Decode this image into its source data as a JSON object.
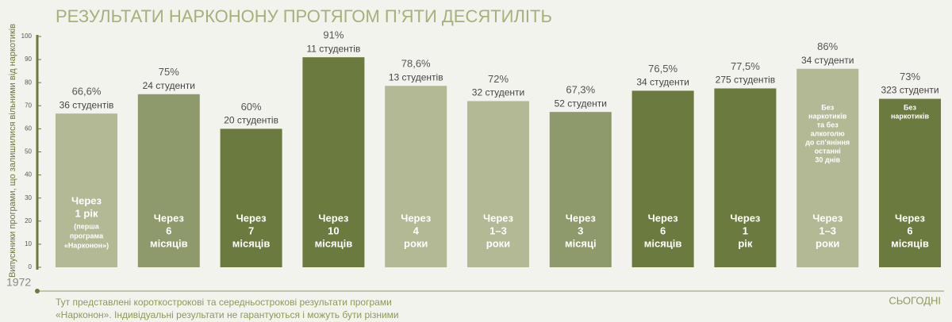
{
  "chart_data": {
    "type": "bar",
    "title": "РЕЗУЛЬТАТИ НАРКОНОНУ ПРОТЯГОМ П’ЯТИ ДЕСЯТИЛІТЬ",
    "y_label": "Випускники програми, що залишилися вільними від наркотиків",
    "categories": [
      null,
      null,
      null,
      null,
      null,
      null,
      null,
      null,
      null,
      null,
      null
    ],
    "values": [
      66.6,
      75,
      60,
      91,
      78.6,
      72,
      67.3,
      76.5,
      77.5,
      86,
      73
    ],
    "value_labels": [
      "66,6%",
      "75%",
      "60%",
      "91%",
      "78,6%",
      "72%",
      "67,3%",
      "76,5%",
      "77,5%",
      "86%",
      "73%"
    ],
    "sublabels": [
      "36 студентів",
      "24 студенти",
      "20 студентів",
      "11 студентів",
      "13 студентів",
      "32 студенти",
      "52 студенти",
      "34 студенти",
      "275 студентів",
      "34 студенти",
      "323 студенти"
    ],
    "bar_labels": [
      [
        "Через",
        "1 рік",
        "(перша",
        "програма",
        "«Нарконон»)"
      ],
      [
        "Через",
        "6",
        "місяців"
      ],
      [
        "Через",
        "7",
        "місяців"
      ],
      [
        "Через",
        "10",
        "місяців"
      ],
      [
        "Через",
        "4",
        "роки"
      ],
      [
        "Через",
        "1–3",
        "роки"
      ],
      [
        "Через",
        "3",
        "місяці"
      ],
      [
        "Через",
        "6",
        "місяців"
      ],
      [
        "Через",
        "1",
        "рік"
      ],
      [
        "Через",
        "1–3",
        "роки"
      ],
      [
        "Через",
        "6",
        "місяців"
      ]
    ],
    "notes": [
      null,
      null,
      null,
      null,
      null,
      null,
      null,
      null,
      null,
      [
        "Без",
        "наркотиків",
        "та без",
        "алкоголю",
        "до сп’яніння",
        "останні",
        "30 днів"
      ],
      [
        "Без",
        "наркотиків"
      ]
    ],
    "colors": [
      "#b3b994",
      "#8f9a6c",
      "#6b7a3e",
      "#6b7a3e",
      "#b3b994",
      "#b3b994",
      "#8f9a6c",
      "#6b7a3e",
      "#6b7a3e",
      "#b3b994",
      "#6b7a3e"
    ],
    "ylim": [
      0,
      100
    ],
    "yticks": [
      0,
      10,
      20,
      30,
      40,
      50,
      60,
      70,
      80,
      90,
      100
    ],
    "timeline_start": "1972",
    "timeline_end": "СЬОГОДНІ",
    "footnote": [
      "Тут представлені короткострокові та середньострокові результати програми",
      "«Нарконон». Індивідуальні результати не гарантуються і можуть бути різними"
    ]
  }
}
